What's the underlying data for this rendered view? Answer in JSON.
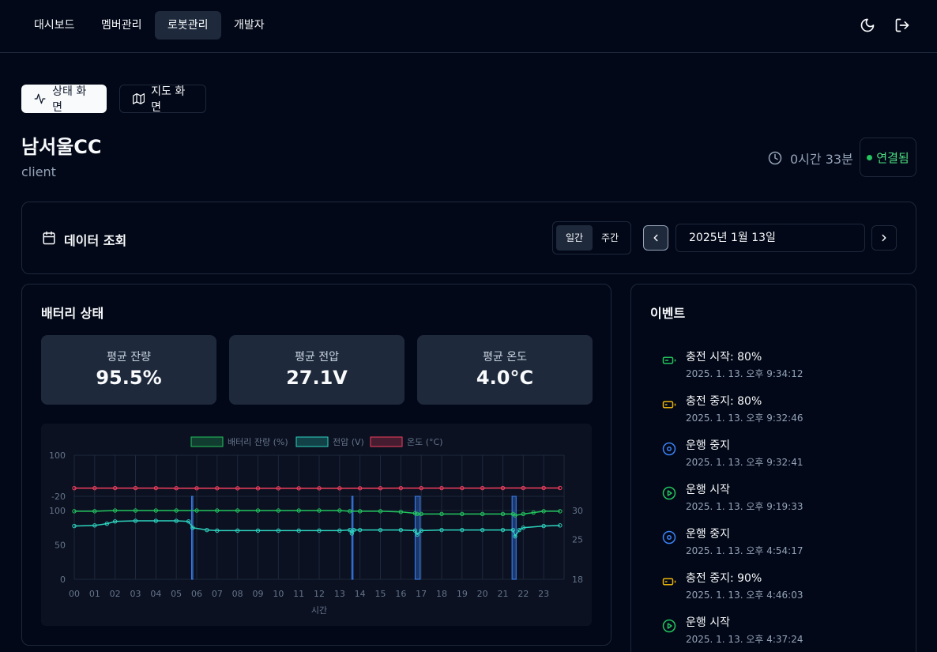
{
  "nav": {
    "items": [
      {
        "label": "대시보드"
      },
      {
        "label": "멤버관리"
      },
      {
        "label": "로봇관리"
      },
      {
        "label": "개발자"
      }
    ]
  },
  "view_tabs": {
    "status_label": "상태 화면",
    "map_label": "지도 화면"
  },
  "robot": {
    "name": "남서울CC",
    "subtitle": "client",
    "uptime": "0시간 33분",
    "connection": "연결됨"
  },
  "data_query": {
    "title": "데이터 조회",
    "daily_label": "일간",
    "weekly_label": "주간",
    "date": "2025년 1월 13일"
  },
  "battery": {
    "title": "배터리 상태",
    "stats": [
      {
        "label": "평균 잔량",
        "value": "95.5%"
      },
      {
        "label": "평균 전압",
        "value": "27.1V"
      },
      {
        "label": "평균 온도",
        "value": "4.0°C"
      }
    ]
  },
  "chart_data": {
    "type": "line",
    "xlabel": "시간",
    "categories": [
      "00",
      "01",
      "02",
      "03",
      "04",
      "05",
      "06",
      "07",
      "08",
      "09",
      "10",
      "11",
      "12",
      "13",
      "14",
      "15",
      "16",
      "17",
      "18",
      "19",
      "20",
      "21",
      "22",
      "23"
    ],
    "legend": [
      "배터리 잔량 (%)",
      "전압 (V)",
      "온도 (°C)"
    ],
    "legend_position": "top",
    "temp_axis": {
      "ticks": [
        "100",
        "-20"
      ],
      "ylim": [
        -20,
        100
      ]
    },
    "percent_axis": {
      "ticks": [
        "100",
        "50",
        "0"
      ],
      "ylim": [
        0,
        100
      ]
    },
    "voltage_axis": {
      "ticks": [
        "30",
        "25",
        "18"
      ],
      "ylim": [
        18,
        30
      ]
    },
    "series": [
      {
        "name": "배터리 잔량 (%)",
        "color": "#22c55e",
        "points": [
          [
            0,
            99
          ],
          [
            1,
            99
          ],
          [
            2,
            100
          ],
          [
            3,
            100
          ],
          [
            4,
            100
          ],
          [
            5,
            100
          ],
          [
            6,
            100
          ],
          [
            7,
            100
          ],
          [
            8,
            100
          ],
          [
            9,
            100
          ],
          [
            10,
            100
          ],
          [
            11,
            100
          ],
          [
            12,
            100
          ],
          [
            13,
            100
          ],
          [
            13.5,
            99
          ],
          [
            14,
            99
          ],
          [
            15,
            99
          ],
          [
            16,
            98
          ],
          [
            16.7,
            96
          ],
          [
            16.8,
            95
          ],
          [
            17,
            95
          ],
          [
            18,
            95
          ],
          [
            19,
            95
          ],
          [
            20,
            95
          ],
          [
            21,
            95
          ],
          [
            21.5,
            95
          ],
          [
            21.6,
            93
          ],
          [
            22,
            95
          ],
          [
            22.5,
            97
          ],
          [
            23,
            99
          ],
          [
            23.8,
            99
          ]
        ]
      },
      {
        "name": "전압 (V)",
        "color": "#2dd4bf",
        "points": [
          [
            0,
            27.3
          ],
          [
            1,
            27.4
          ],
          [
            1.6,
            27.7
          ],
          [
            2,
            28.1
          ],
          [
            3,
            28.2
          ],
          [
            4,
            28.2
          ],
          [
            5,
            28.2
          ],
          [
            5.6,
            28.1
          ],
          [
            5.8,
            27.0
          ],
          [
            6.5,
            26.6
          ],
          [
            7,
            26.5
          ],
          [
            8,
            26.5
          ],
          [
            9,
            26.5
          ],
          [
            10,
            26.5
          ],
          [
            11,
            26.5
          ],
          [
            12,
            26.5
          ],
          [
            13,
            26.5
          ],
          [
            13.5,
            26.6
          ],
          [
            13.6,
            26.0
          ],
          [
            13.7,
            26.6
          ],
          [
            14,
            26.6
          ],
          [
            15,
            26.6
          ],
          [
            16,
            26.6
          ],
          [
            16.7,
            26.5
          ],
          [
            16.8,
            25.8
          ],
          [
            17,
            26.5
          ],
          [
            18,
            26.6
          ],
          [
            19,
            26.6
          ],
          [
            20,
            26.6
          ],
          [
            21,
            26.6
          ],
          [
            21.5,
            26.6
          ],
          [
            21.6,
            25.5
          ],
          [
            21.8,
            26.6
          ],
          [
            22,
            27.0
          ],
          [
            23,
            27.3
          ],
          [
            23.8,
            27.4
          ]
        ]
      },
      {
        "name": "온도 (°C)",
        "color": "#f43f5e",
        "points": [
          [
            0,
            3.8
          ],
          [
            1,
            3.9
          ],
          [
            2,
            4.0
          ],
          [
            3,
            4.0
          ],
          [
            4,
            3.9
          ],
          [
            5,
            3.7
          ],
          [
            6,
            3.6
          ],
          [
            7,
            3.6
          ],
          [
            8,
            3.5
          ],
          [
            9,
            3.5
          ],
          [
            10,
            3.5
          ],
          [
            11,
            3.4
          ],
          [
            12,
            3.5
          ],
          [
            13,
            3.5
          ],
          [
            14,
            3.6
          ],
          [
            15,
            3.7
          ],
          [
            16,
            3.9
          ],
          [
            17,
            4.0
          ],
          [
            18,
            4.0
          ],
          [
            19,
            4.0
          ],
          [
            20,
            4.0
          ],
          [
            21,
            4.1
          ],
          [
            22,
            4.2
          ],
          [
            23,
            4.3
          ],
          [
            23.8,
            4.3
          ]
        ]
      }
    ],
    "highlight_spans": [
      [
        5.75,
        5.78
      ],
      [
        13.6,
        13.63
      ],
      [
        16.7,
        16.95
      ],
      [
        21.45,
        21.65
      ]
    ]
  },
  "events": {
    "title": "이벤트",
    "items": [
      {
        "title": "충전 시작: 80%",
        "time": "2025. 1. 13. 오후 9:34:12",
        "icon": "battery-charging-icon",
        "color": "#22c55e"
      },
      {
        "title": "충전 중지: 80%",
        "time": "2025. 1. 13. 오후 9:32:46",
        "icon": "battery-icon",
        "color": "#eab308"
      },
      {
        "title": "운행 중지",
        "time": "2025. 1. 13. 오후 9:32:41",
        "icon": "stop-circle-icon",
        "color": "#3b82f6"
      },
      {
        "title": "운행 시작",
        "time": "2025. 1. 13. 오후 9:19:33",
        "icon": "play-circle-icon",
        "color": "#22c55e"
      },
      {
        "title": "운행 중지",
        "time": "2025. 1. 13. 오후 4:54:17",
        "icon": "stop-circle-icon",
        "color": "#3b82f6"
      },
      {
        "title": "충전 중지: 90%",
        "time": "2025. 1. 13. 오후 4:46:03",
        "icon": "battery-icon",
        "color": "#eab308"
      },
      {
        "title": "운행 시작",
        "time": "2025. 1. 13. 오후 4:37:24",
        "icon": "play-circle-icon",
        "color": "#22c55e"
      }
    ]
  }
}
